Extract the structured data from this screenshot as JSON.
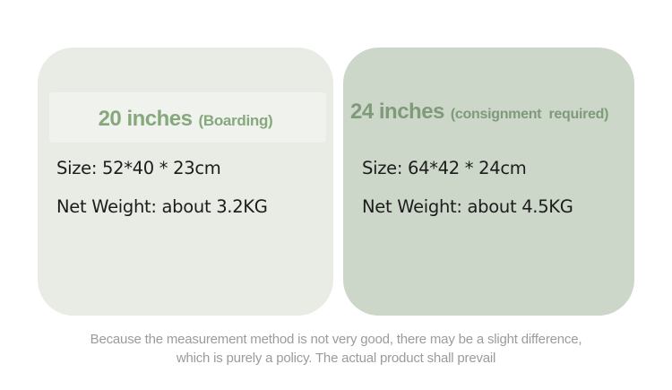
{
  "page": {
    "background_color": "#ffffff",
    "text_color": "#1c1c1c"
  },
  "cards": [
    {
      "title": "20 inches",
      "qualifier": "(Boarding)",
      "size": "Size: 52*40 * 23cm",
      "weight": "Net Weight: about 3.2KG",
      "bg_color": "#e9ece5",
      "accent_color": "#87a87d"
    },
    {
      "title": "24 inches",
      "qualifier": "(consignment  required)",
      "size": "Size: 64*42 * 24cm",
      "weight": "Net Weight: about 4.5KG",
      "bg_color": "#ccd7c9",
      "accent_color": "#7e9a79"
    }
  ],
  "disclaimer": {
    "line1": "Because the measurement method is not very good, there may be a slight difference,",
    "line2": "which is purely a policy. The actual product shall prevail",
    "color": "#9b9b9b"
  }
}
